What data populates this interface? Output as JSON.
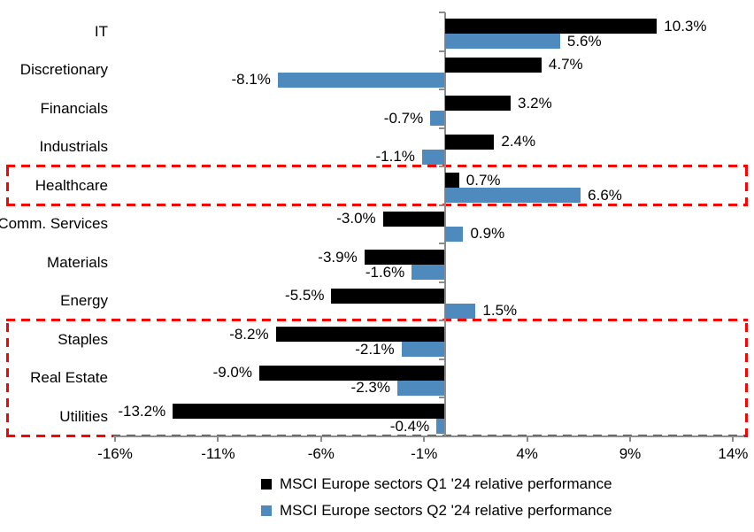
{
  "chart_data": {
    "type": "bar",
    "orientation": "horizontal",
    "title": "",
    "categories": [
      "IT",
      "Discretionary",
      "Financials",
      "Industrials",
      "Healthcare",
      "Comm. Services",
      "Materials",
      "Energy",
      "Staples",
      "Real Estate",
      "Utilities"
    ],
    "series": [
      {
        "name": "MSCI Europe sectors Q1 '24 relative performance",
        "color": "#000000",
        "values": [
          10.3,
          4.7,
          3.2,
          2.4,
          0.7,
          -3.0,
          -3.9,
          -5.5,
          -8.2,
          -9.0,
          -13.2
        ]
      },
      {
        "name": "MSCI Europe sectors Q2 '24 relative performance",
        "color": "#4f8abf",
        "values": [
          5.6,
          -8.1,
          -0.7,
          -1.1,
          6.6,
          0.9,
          -1.6,
          1.5,
          -2.1,
          -2.3,
          -0.4
        ]
      }
    ],
    "value_label_suffix": "%",
    "value_label_decimals": 1,
    "x_axis": {
      "min": -16,
      "max": 14.5,
      "ticks": [
        -16,
        -11,
        -6,
        -1,
        4,
        9,
        14
      ],
      "tick_labels": [
        "-16%",
        "-11%",
        "-6%",
        "-1%",
        "4%",
        "9%",
        "14%"
      ]
    },
    "grid": "off",
    "legend_position": "bottom",
    "highlight_boxes": [
      {
        "rows": [
          "Healthcare"
        ],
        "color": "#ff0000"
      },
      {
        "rows": [
          "Staples",
          "Real Estate",
          "Utilities"
        ],
        "color": "#ff0000"
      }
    ]
  },
  "colors": {
    "q1_bar": "#000000",
    "q2_bar": "#4f8abf",
    "highlight": "#ff0000",
    "axis": "#8c8c8c"
  }
}
